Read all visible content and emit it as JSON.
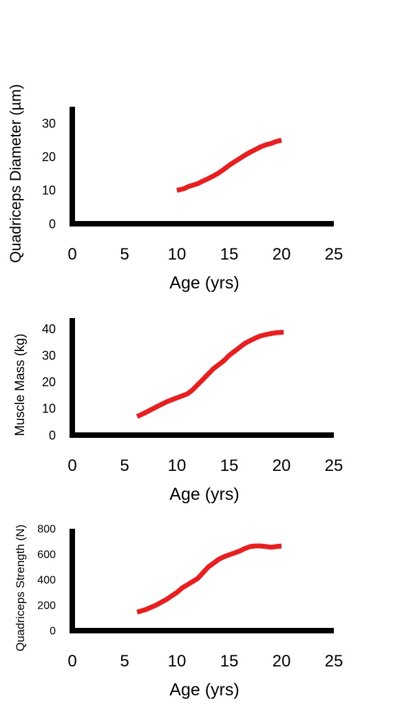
{
  "chart_data": [
    {
      "type": "line",
      "xlabel": "Age (yrs)",
      "ylabel": "Quadriceps Diameter (µm)",
      "xlim": [
        0,
        25
      ],
      "ylim": [
        0,
        35
      ],
      "xticks": [
        "0",
        "5",
        "10",
        "15",
        "20",
        "25"
      ],
      "yticks": [
        "0",
        "10",
        "20",
        "30"
      ],
      "grid": false,
      "colors": {
        "line": "#ee1c1c",
        "axis": "#000000"
      },
      "series": [
        {
          "x": [
            10,
            10.7,
            11,
            11.5,
            12,
            12.5,
            13,
            13.5,
            14,
            14.5,
            15,
            15.5,
            16,
            16.5,
            17,
            17.5,
            18,
            18.5,
            19,
            19.5,
            20
          ],
          "y": [
            10,
            10.5,
            11,
            11.5,
            12,
            12.8,
            13.5,
            14.3,
            15.2,
            16.3,
            17.5,
            18.5,
            19.5,
            20.5,
            21.4,
            22.2,
            23,
            23.6,
            24,
            24.6,
            25
          ]
        }
      ]
    },
    {
      "type": "line",
      "xlabel": "Age (yrs)",
      "ylabel": "Muscle Mass (kg)",
      "xlim": [
        0,
        25
      ],
      "ylim": [
        0,
        44
      ],
      "xticks": [
        "0",
        "5",
        "10",
        "15",
        "20",
        "25"
      ],
      "yticks": [
        "0",
        "10",
        "20",
        "30",
        "40"
      ],
      "grid": false,
      "colors": {
        "line": "#ee1c1c",
        "axis": "#000000"
      },
      "series": [
        {
          "x": [
            6.2,
            7,
            8,
            9,
            10,
            11,
            11.5,
            12,
            12.5,
            13,
            13.5,
            14,
            14.5,
            15,
            15.5,
            16,
            16.5,
            17,
            17.5,
            18,
            18.5,
            19,
            19.5,
            20.2
          ],
          "y": [
            7,
            8.5,
            10.5,
            12.5,
            14,
            15.5,
            17,
            19,
            21,
            23,
            25,
            26.5,
            28,
            30,
            31.5,
            33,
            34.5,
            35.5,
            36.5,
            37.3,
            37.8,
            38.2,
            38.5,
            38.7
          ]
        }
      ]
    },
    {
      "type": "line",
      "xlabel": "Age (yrs)",
      "ylabel": "Quadriceps Strength (N)",
      "xlim": [
        0,
        25
      ],
      "ylim": [
        0,
        800
      ],
      "xticks": [
        "0",
        "5",
        "10",
        "15",
        "20",
        "25"
      ],
      "yticks": [
        "0",
        "200",
        "400",
        "600",
        "800"
      ],
      "grid": false,
      "colors": {
        "line": "#ee1c1c",
        "axis": "#000000"
      },
      "series": [
        {
          "x": [
            6.2,
            7,
            8,
            9,
            10,
            10.5,
            11,
            11.5,
            12,
            12.5,
            13,
            13.5,
            14,
            14.5,
            15,
            15.5,
            16,
            16.5,
            17,
            17.5,
            18,
            18.5,
            19,
            19.5,
            20
          ],
          "y": [
            145,
            165,
            200,
            245,
            300,
            335,
            360,
            385,
            410,
            455,
            500,
            530,
            560,
            580,
            595,
            610,
            625,
            645,
            660,
            665,
            665,
            660,
            655,
            660,
            665
          ]
        }
      ]
    }
  ]
}
